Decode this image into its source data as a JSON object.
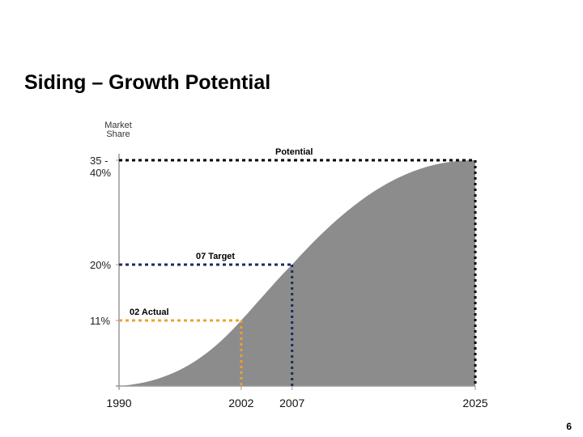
{
  "slide": {
    "title": "Siding – Growth Potential",
    "page_number": "6"
  },
  "chart_data": {
    "type": "area",
    "title": "",
    "ylabel": [
      "Market",
      "Share"
    ],
    "xlabel": "",
    "x_ticks": [
      1990,
      2002,
      2007,
      2025
    ],
    "x_tick_labels": [
      "1990",
      "2002",
      "2007",
      "2025"
    ],
    "y_ticks": [
      11,
      20,
      37.5
    ],
    "y_tick_labels": [
      [
        "11%"
      ],
      [
        "20%"
      ],
      [
        "35 -",
        "40%"
      ]
    ],
    "series": [
      {
        "name": "Market Share",
        "points": [
          [
            1990,
            0
          ],
          [
            2002,
            11
          ],
          [
            2007,
            20
          ],
          [
            2025,
            37.5
          ]
        ],
        "color": "#8c8c8c"
      }
    ],
    "annotations": [
      {
        "label": "02 Actual",
        "x": 2002,
        "y": 11,
        "color": "#f0a030"
      },
      {
        "label": "07 Target",
        "x": 2007,
        "y": 20,
        "color": "#1f2a5c"
      },
      {
        "label": "Potential",
        "x": 2025,
        "y": 37.5,
        "color": "#000000"
      }
    ],
    "xlim": [
      1990,
      2025
    ],
    "grid": false
  }
}
